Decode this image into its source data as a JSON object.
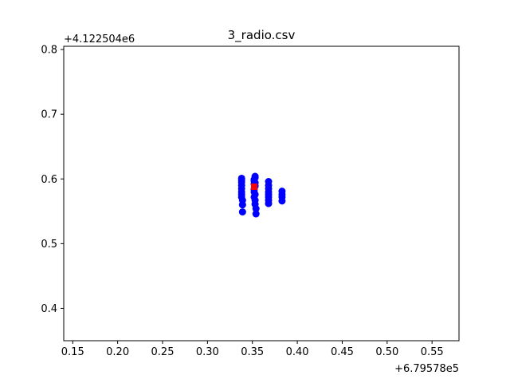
{
  "chart_data": {
    "type": "scatter",
    "title": "3_radio.csv",
    "xlabel": "",
    "ylabel": "",
    "xlim": [
      0.14,
      0.58
    ],
    "ylim": [
      0.35,
      0.805
    ],
    "x_offset_text": "+6.79578e5",
    "y_offset_text": "+4.122504e6",
    "x_ticks": [
      0.15,
      0.2,
      0.25,
      0.3,
      0.35,
      0.4,
      0.45,
      0.5,
      0.55
    ],
    "x_tick_labels": [
      "0.15",
      "0.20",
      "0.25",
      "0.30",
      "0.35",
      "0.40",
      "0.45",
      "0.50",
      "0.55"
    ],
    "y_ticks": [
      0.4,
      0.5,
      0.6,
      0.7,
      0.8
    ],
    "y_tick_labels": [
      "0.4",
      "0.5",
      "0.6",
      "0.7",
      "0.8"
    ],
    "grid": false,
    "series": [
      {
        "color": "#0000ff",
        "marker": "circle",
        "points": [
          [
            0.338,
            0.601
          ],
          [
            0.338,
            0.598
          ],
          [
            0.338,
            0.595
          ],
          [
            0.338,
            0.59
          ],
          [
            0.338,
            0.585
          ],
          [
            0.338,
            0.58
          ],
          [
            0.338,
            0.576
          ],
          [
            0.338,
            0.572
          ],
          [
            0.339,
            0.567
          ],
          [
            0.339,
            0.56
          ],
          [
            0.339,
            0.549
          ],
          [
            0.353,
            0.604
          ],
          [
            0.353,
            0.602
          ],
          [
            0.352,
            0.599
          ],
          [
            0.352,
            0.597
          ],
          [
            0.353,
            0.594
          ],
          [
            0.352,
            0.592
          ],
          [
            0.353,
            0.589
          ],
          [
            0.352,
            0.584
          ],
          [
            0.352,
            0.58
          ],
          [
            0.353,
            0.576
          ],
          [
            0.352,
            0.572
          ],
          [
            0.353,
            0.567
          ],
          [
            0.353,
            0.561
          ],
          [
            0.354,
            0.554
          ],
          [
            0.354,
            0.546
          ],
          [
            0.368,
            0.596
          ],
          [
            0.368,
            0.59
          ],
          [
            0.368,
            0.585
          ],
          [
            0.368,
            0.58
          ],
          [
            0.368,
            0.576
          ],
          [
            0.368,
            0.572
          ],
          [
            0.368,
            0.567
          ],
          [
            0.368,
            0.562
          ],
          [
            0.383,
            0.581
          ],
          [
            0.383,
            0.576
          ],
          [
            0.383,
            0.572
          ],
          [
            0.383,
            0.566
          ]
        ]
      },
      {
        "color": "#ff0000",
        "marker": "square",
        "points": [
          [
            0.352,
            0.588
          ]
        ]
      }
    ]
  }
}
